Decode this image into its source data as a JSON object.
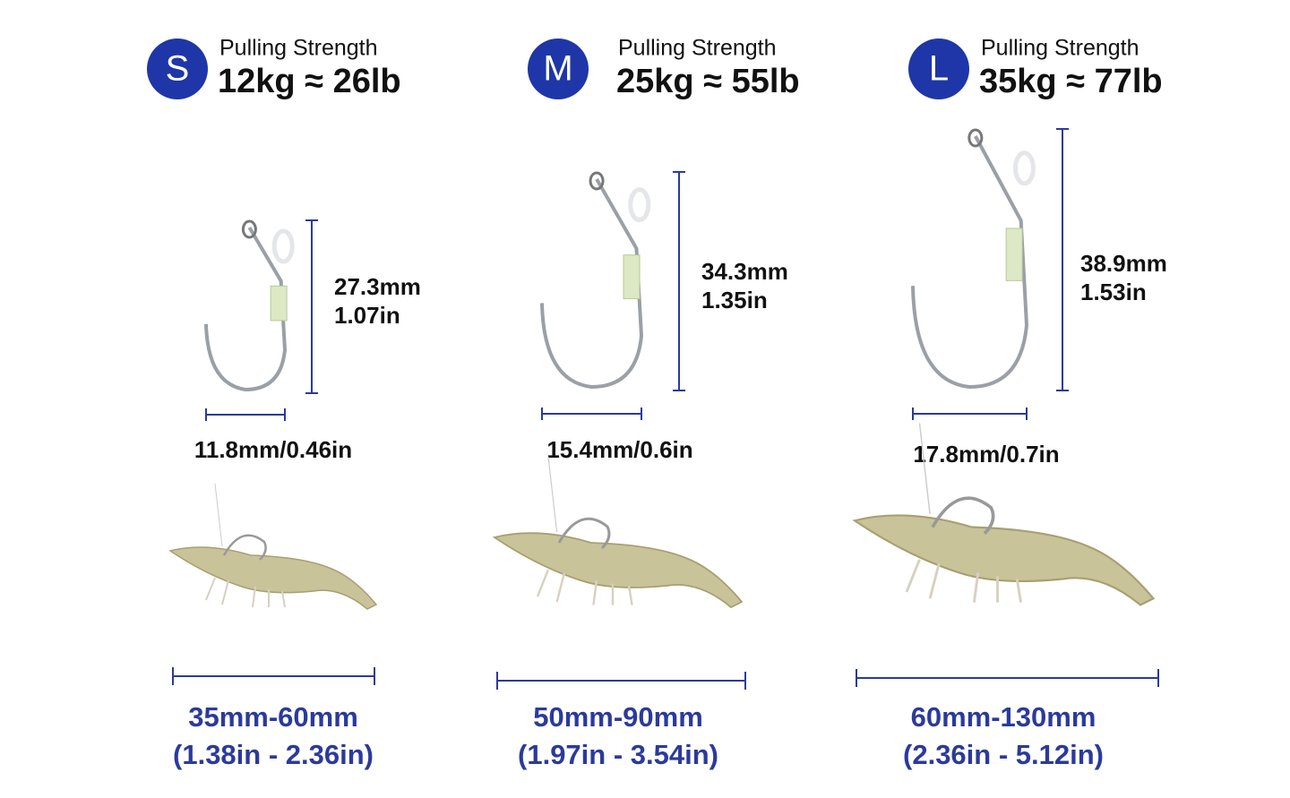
{
  "sizes": [
    {
      "badge": "S",
      "label": "Pulling Strength",
      "strength": "12kg ≈ 26lb",
      "hook_height_mm": "27.3mm",
      "hook_height_in": "1.07in",
      "hook_width": "11.8mm/0.46in",
      "length_mm": "35mm-60mm",
      "length_in": "(1.38in - 2.36in)"
    },
    {
      "badge": "M",
      "label": "Pulling Strength",
      "strength": "25kg ≈ 55lb",
      "hook_height_mm": "34.3mm",
      "hook_height_in": "1.35in",
      "hook_width": "15.4mm/0.6in",
      "length_mm": "50mm-90mm",
      "length_in": "(1.97in - 3.54in)"
    },
    {
      "badge": "L",
      "label": "Pulling Strength",
      "strength": "35kg ≈ 77lb",
      "hook_height_mm": "38.9mm",
      "hook_height_in": "1.53in",
      "hook_width": "17.8mm/0.7in",
      "length_mm": "60mm-130mm",
      "length_in": "(2.36in - 5.12in)"
    }
  ]
}
